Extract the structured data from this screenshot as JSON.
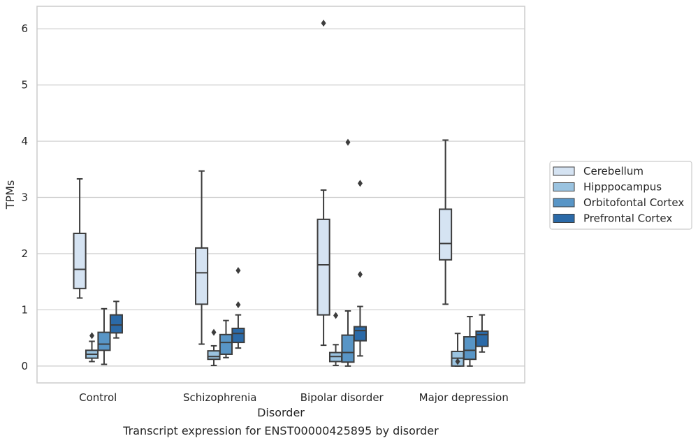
{
  "chart_data": {
    "type": "box",
    "title": "",
    "caption": "Transcript expression for ENST00000425895 by disorder",
    "xlabel": "Disorder",
    "ylabel": "TPMs",
    "ylim": [
      -0.3,
      6.4
    ],
    "yticks": [
      0,
      1,
      2,
      3,
      4,
      5,
      6
    ],
    "grid": "horizontal",
    "legend_position": "right",
    "categories": [
      "Control",
      "Schizophrenia",
      "Bipolar disorder",
      "Major depression"
    ],
    "series": [
      {
        "name": "Cerebellum",
        "color": "#d5e3f2",
        "boxes": [
          {
            "whislo": 1.21,
            "q1": 1.38,
            "med": 1.72,
            "q3": 2.36,
            "whishi": 3.33,
            "fliers": []
          },
          {
            "whislo": 0.39,
            "q1": 1.1,
            "med": 1.66,
            "q3": 2.1,
            "whishi": 3.47,
            "fliers": []
          },
          {
            "whislo": 0.37,
            "q1": 0.91,
            "med": 1.8,
            "q3": 2.61,
            "whishi": 3.13,
            "fliers": [
              6.1
            ]
          },
          {
            "whislo": 1.1,
            "q1": 1.89,
            "med": 2.18,
            "q3": 2.79,
            "whishi": 4.02,
            "fliers": []
          }
        ]
      },
      {
        "name": "Hipppocampus",
        "color": "#9ac3e0",
        "boxes": [
          {
            "whislo": 0.08,
            "q1": 0.14,
            "med": 0.21,
            "q3": 0.28,
            "whishi": 0.44,
            "fliers": [
              0.54
            ]
          },
          {
            "whislo": 0.01,
            "q1": 0.12,
            "med": 0.17,
            "q3": 0.27,
            "whishi": 0.36,
            "fliers": [
              0.6
            ]
          },
          {
            "whislo": 0.01,
            "q1": 0.08,
            "med": 0.17,
            "q3": 0.24,
            "whishi": 0.38,
            "fliers": [
              0.9
            ]
          },
          {
            "whislo": 0.0,
            "q1": 0.0,
            "med": 0.14,
            "q3": 0.26,
            "whishi": 0.58,
            "fliers": [
              0.08
            ]
          }
        ]
      },
      {
        "name": "Orbitofontal Cortex",
        "color": "#5895c6",
        "boxes": [
          {
            "whislo": 0.03,
            "q1": 0.28,
            "med": 0.39,
            "q3": 0.6,
            "whishi": 1.02,
            "fliers": []
          },
          {
            "whislo": 0.15,
            "q1": 0.21,
            "med": 0.42,
            "q3": 0.56,
            "whishi": 0.81,
            "fliers": []
          },
          {
            "whislo": 0.0,
            "q1": 0.07,
            "med": 0.24,
            "q3": 0.55,
            "whishi": 0.98,
            "fliers": [
              3.98
            ]
          },
          {
            "whislo": 0.0,
            "q1": 0.12,
            "med": 0.28,
            "q3": 0.52,
            "whishi": 0.88,
            "fliers": []
          }
        ]
      },
      {
        "name": "Prefrontal Cortex",
        "color": "#2b6aa8",
        "boxes": [
          {
            "whislo": 0.5,
            "q1": 0.59,
            "med": 0.73,
            "q3": 0.91,
            "whishi": 1.15,
            "fliers": []
          },
          {
            "whislo": 0.32,
            "q1": 0.42,
            "med": 0.58,
            "q3": 0.67,
            "whishi": 0.91,
            "fliers": [
              1.09,
              1.7
            ]
          },
          {
            "whislo": 0.18,
            "q1": 0.45,
            "med": 0.63,
            "q3": 0.7,
            "whishi": 1.06,
            "fliers": [
              1.63,
              3.25
            ]
          },
          {
            "whislo": 0.25,
            "q1": 0.35,
            "med": 0.56,
            "q3": 0.62,
            "whishi": 0.91,
            "fliers": []
          }
        ]
      }
    ]
  }
}
